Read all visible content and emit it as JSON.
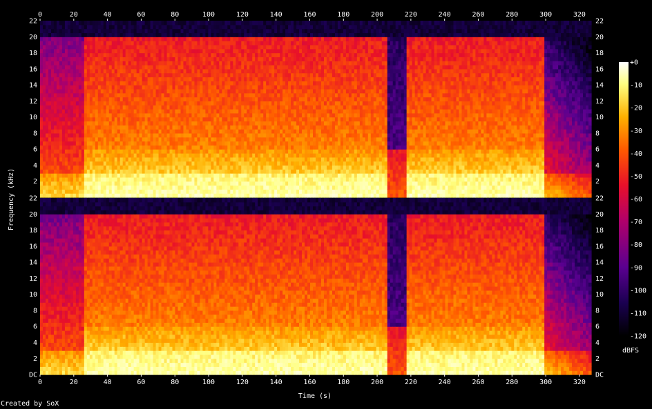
{
  "chart_data": {
    "type": "heatmap",
    "title": "",
    "xlabel": "Time (s)",
    "ylabel": "Frequency (kHz)",
    "xlim": [
      0,
      327
    ],
    "ylim_khz": [
      0,
      22
    ],
    "x_ticks": [
      "0",
      "20",
      "40",
      "60",
      "80",
      "100",
      "120",
      "140",
      "160",
      "180",
      "200",
      "220",
      "240",
      "260",
      "280",
      "300",
      "320"
    ],
    "y_ticks": [
      "DC",
      "2",
      "4",
      "6",
      "8",
      "10",
      "12",
      "14",
      "16",
      "18",
      "20",
      "22"
    ],
    "y_ticks_top": [
      "2",
      "4",
      "6",
      "8",
      "10",
      "12",
      "14",
      "16",
      "18",
      "20",
      "22"
    ],
    "channels": 2,
    "colorbar": {
      "label": "dBFS",
      "ticks": [
        "+0",
        "-10",
        "-20",
        "-30",
        "-40",
        "-50",
        "-60",
        "-70",
        "-80",
        "-90",
        "-100",
        "-110",
        "-120"
      ],
      "range_db": [
        -120,
        0
      ]
    },
    "colors": [
      "#000000",
      "#1a0050",
      "#5a0090",
      "#b0006a",
      "#e8102a",
      "#ff5a00",
      "#ffb000",
      "#ffff80",
      "#ffffff"
    ],
    "grid": false,
    "quiet_section_s": [
      206,
      217
    ],
    "loud_section_s": [
      [
        26,
        206
      ],
      [
        217,
        300
      ]
    ],
    "intro_s": [
      0,
      26
    ],
    "outro_s": [
      300,
      327
    ],
    "credit": "Created by SoX"
  }
}
